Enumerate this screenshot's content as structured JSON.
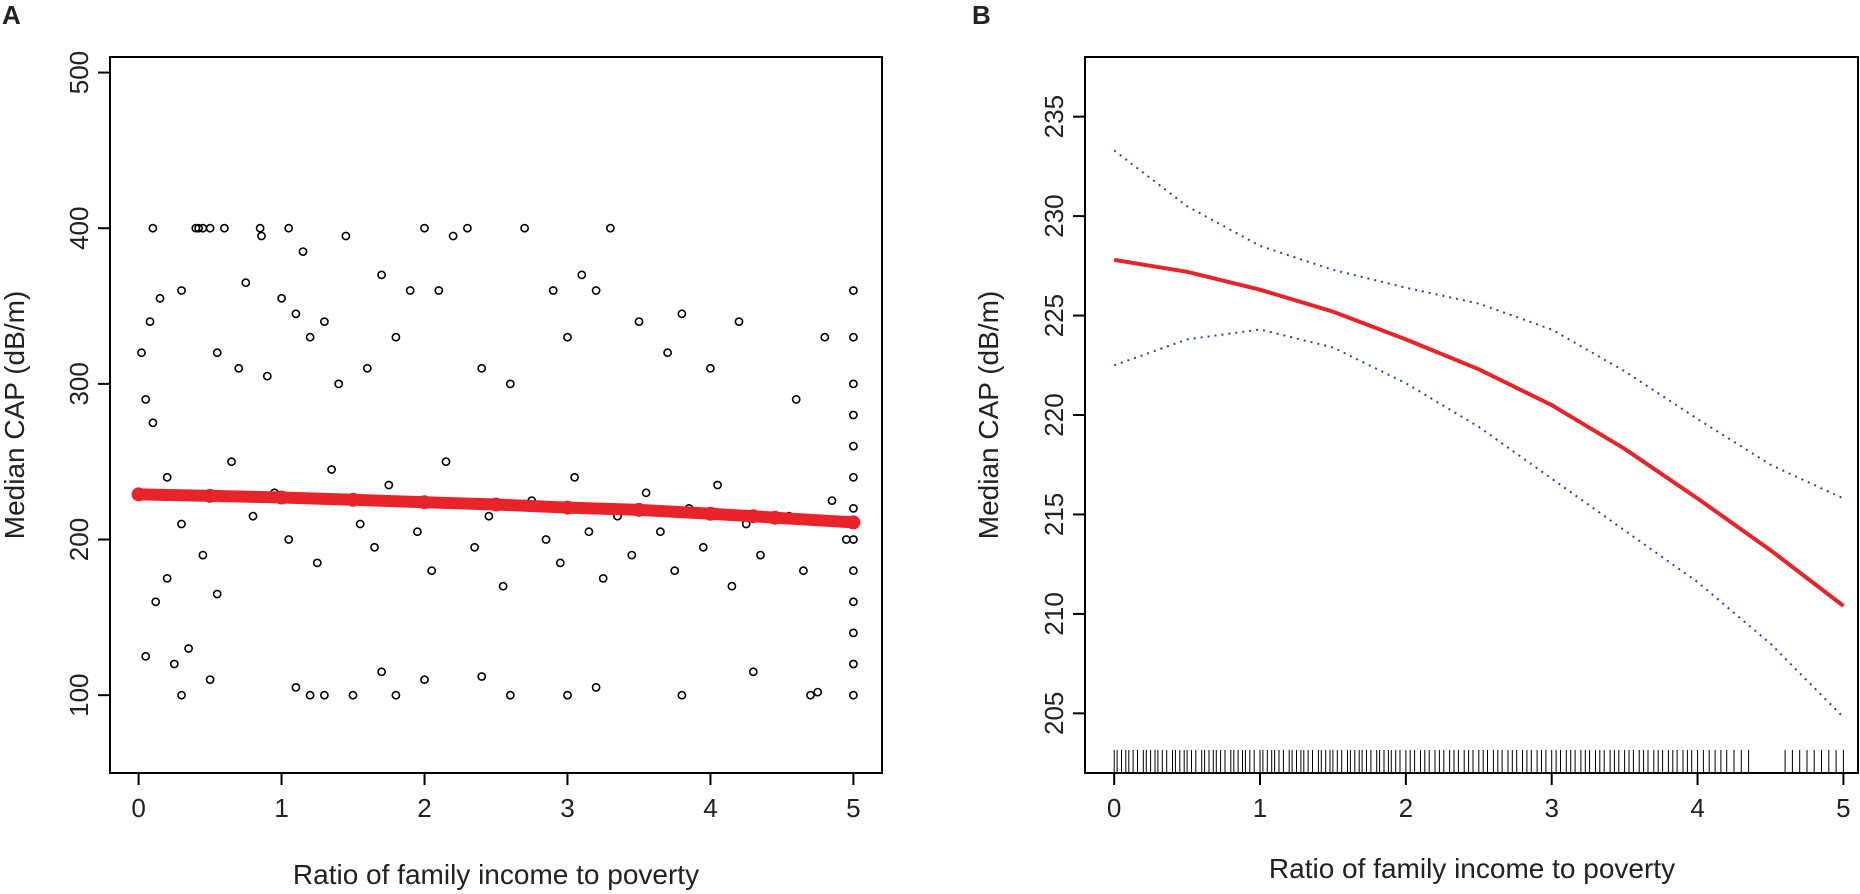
{
  "panels": [
    {
      "letter": "A",
      "chart_data": {
        "type": "scatter",
        "xlabel": "Ratio of family income to poverty",
        "ylabel": "Median CAP (dB/m)",
        "xlim": [
          -0.2,
          5.2
        ],
        "ylim": [
          50,
          510
        ],
        "xticks": [
          0,
          1,
          2,
          3,
          4,
          5
        ],
        "yticks": [
          100,
          200,
          300,
          400,
          500
        ],
        "grid": false,
        "scatter_color": "#000000",
        "fit_color": "#e8242a",
        "fit_line": {
          "x": [
            0,
            0.5,
            1,
            1.5,
            2,
            2.5,
            3,
            3.5,
            4,
            4.3,
            4.45,
            5
          ],
          "y": [
            229,
            228,
            227,
            225.5,
            224,
            222.5,
            220.5,
            219,
            216.5,
            215,
            214,
            211
          ]
        },
        "scatter_note": "approx. 1,200 points; values are estimates read from the figure",
        "points": [
          [
            0.02,
            320
          ],
          [
            0.05,
            290
          ],
          [
            0.08,
            340
          ],
          [
            0.1,
            275
          ],
          [
            0.1,
            400
          ],
          [
            0.15,
            355
          ],
          [
            0.2,
            240
          ],
          [
            0.25,
            120
          ],
          [
            0.3,
            360
          ],
          [
            0.35,
            130
          ],
          [
            0.4,
            400
          ],
          [
            0.42,
            400
          ],
          [
            0.45,
            400
          ],
          [
            0.5,
            400
          ],
          [
            0.55,
            320
          ],
          [
            0.6,
            400
          ],
          [
            0.7,
            310
          ],
          [
            0.75,
            365
          ],
          [
            0.85,
            400
          ],
          [
            0.86,
            395
          ],
          [
            0.9,
            305
          ],
          [
            1.0,
            355
          ],
          [
            1.05,
            400
          ],
          [
            1.1,
            345
          ],
          [
            1.15,
            385
          ],
          [
            1.2,
            330
          ],
          [
            1.3,
            340
          ],
          [
            1.4,
            300
          ],
          [
            1.45,
            395
          ],
          [
            1.6,
            310
          ],
          [
            1.7,
            370
          ],
          [
            1.8,
            330
          ],
          [
            1.9,
            360
          ],
          [
            2.0,
            400
          ],
          [
            2.1,
            360
          ],
          [
            2.2,
            395
          ],
          [
            2.3,
            400
          ],
          [
            2.4,
            310
          ],
          [
            2.6,
            300
          ],
          [
            2.7,
            400
          ],
          [
            2.9,
            360
          ],
          [
            3.0,
            330
          ],
          [
            3.1,
            370
          ],
          [
            3.2,
            360
          ],
          [
            3.3,
            400
          ],
          [
            3.5,
            340
          ],
          [
            3.7,
            320
          ],
          [
            3.8,
            345
          ],
          [
            4.0,
            310
          ],
          [
            4.2,
            340
          ],
          [
            4.6,
            290
          ],
          [
            4.8,
            330
          ],
          [
            5.0,
            360
          ],
          [
            5.0,
            330
          ],
          [
            0.3,
            100
          ],
          [
            0.5,
            110
          ],
          [
            1.1,
            105
          ],
          [
            1.2,
            100
          ],
          [
            1.3,
            100
          ],
          [
            1.5,
            100
          ],
          [
            1.7,
            115
          ],
          [
            1.8,
            100
          ],
          [
            2.0,
            110
          ],
          [
            2.4,
            112
          ],
          [
            2.6,
            100
          ],
          [
            3.0,
            100
          ],
          [
            3.2,
            105
          ],
          [
            3.8,
            100
          ],
          [
            4.3,
            115
          ],
          [
            4.7,
            100
          ],
          [
            4.75,
            102
          ],
          [
            5.0,
            100
          ],
          [
            0.05,
            125
          ],
          [
            0.12,
            160
          ],
          [
            0.2,
            175
          ],
          [
            0.3,
            210
          ],
          [
            0.45,
            190
          ],
          [
            0.55,
            165
          ],
          [
            0.65,
            250
          ],
          [
            0.8,
            215
          ],
          [
            0.95,
            230
          ],
          [
            1.05,
            200
          ],
          [
            1.25,
            185
          ],
          [
            1.35,
            245
          ],
          [
            1.55,
            210
          ],
          [
            1.65,
            195
          ],
          [
            1.75,
            235
          ],
          [
            1.95,
            205
          ],
          [
            2.05,
            180
          ],
          [
            2.15,
            250
          ],
          [
            2.35,
            195
          ],
          [
            2.45,
            215
          ],
          [
            2.55,
            170
          ],
          [
            2.75,
            225
          ],
          [
            2.85,
            200
          ],
          [
            2.95,
            185
          ],
          [
            3.05,
            240
          ],
          [
            3.15,
            205
          ],
          [
            3.25,
            175
          ],
          [
            3.35,
            215
          ],
          [
            3.45,
            190
          ],
          [
            3.55,
            230
          ],
          [
            3.65,
            205
          ],
          [
            3.75,
            180
          ],
          [
            3.85,
            220
          ],
          [
            3.95,
            195
          ],
          [
            4.05,
            235
          ],
          [
            4.15,
            170
          ],
          [
            4.25,
            210
          ],
          [
            4.35,
            190
          ],
          [
            4.55,
            215
          ],
          [
            4.65,
            180
          ],
          [
            4.85,
            225
          ],
          [
            4.95,
            200
          ],
          [
            5.0,
            140
          ],
          [
            5.0,
            160
          ],
          [
            5.0,
            180
          ],
          [
            5.0,
            200
          ],
          [
            5.0,
            220
          ],
          [
            5.0,
            240
          ],
          [
            5.0,
            260
          ],
          [
            5.0,
            280
          ],
          [
            5.0,
            300
          ],
          [
            5.0,
            120
          ]
        ]
      }
    },
    {
      "letter": "B",
      "chart_data": {
        "type": "line",
        "xlabel": "Ratio of family income to poverty",
        "ylabel": "Median CAP (dB/m)",
        "xlim": [
          -0.2,
          5.1
        ],
        "ylim": [
          202,
          238
        ],
        "xticks": [
          0,
          1,
          2,
          3,
          4,
          5
        ],
        "yticks": [
          205,
          210,
          215,
          220,
          225,
          230,
          235
        ],
        "grid": false,
        "series": [
          {
            "role": "fit",
            "style": "solid",
            "color": "#e8242a",
            "x": [
              0,
              0.5,
              1,
              1.5,
              2,
              2.5,
              3,
              3.5,
              4,
              4.5,
              5
            ],
            "y": [
              227.8,
              227.2,
              226.3,
              225.2,
              223.8,
              222.3,
              220.5,
              218.3,
              215.8,
              213.2,
              210.4
            ]
          },
          {
            "role": "upper-ci",
            "style": "dotted",
            "color": "#2a3fb0",
            "x": [
              0,
              0.5,
              1,
              1.5,
              2,
              2.5,
              3,
              3.5,
              4,
              4.5,
              5
            ],
            "y": [
              233.3,
              230.5,
              228.5,
              227.3,
              226.4,
              225.6,
              224.3,
              222.2,
              219.8,
              217.5,
              215.8
            ]
          },
          {
            "role": "lower-ci",
            "style": "dotted",
            "color": "#2a3fb0",
            "x": [
              0,
              0.5,
              1,
              1.5,
              2,
              2.5,
              3,
              3.5,
              4,
              4.5,
              5
            ],
            "y": [
              222.5,
              223.8,
              224.3,
              223.4,
              221.6,
              219.4,
              216.8,
              214.2,
              211.6,
              208.5,
              204.8
            ]
          }
        ],
        "rug": [
          0.0,
          0.02,
          0.05,
          0.08,
          0.1,
          0.13,
          0.16,
          0.2,
          0.22,
          0.25,
          0.28,
          0.3,
          0.33,
          0.36,
          0.4,
          0.42,
          0.45,
          0.48,
          0.5,
          0.53,
          0.56,
          0.6,
          0.62,
          0.65,
          0.68,
          0.7,
          0.73,
          0.76,
          0.8,
          0.82,
          0.85,
          0.88,
          0.9,
          0.93,
          0.96,
          1.0,
          1.02,
          1.05,
          1.08,
          1.1,
          1.13,
          1.16,
          1.2,
          1.22,
          1.25,
          1.28,
          1.3,
          1.33,
          1.36,
          1.4,
          1.42,
          1.45,
          1.48,
          1.5,
          1.53,
          1.56,
          1.6,
          1.62,
          1.65,
          1.68,
          1.7,
          1.73,
          1.76,
          1.8,
          1.82,
          1.85,
          1.88,
          1.9,
          1.93,
          1.96,
          2.0,
          2.03,
          2.06,
          2.1,
          2.13,
          2.16,
          2.2,
          2.23,
          2.26,
          2.3,
          2.33,
          2.36,
          2.4,
          2.43,
          2.46,
          2.5,
          2.53,
          2.56,
          2.6,
          2.63,
          2.66,
          2.7,
          2.73,
          2.76,
          2.8,
          2.83,
          2.86,
          2.9,
          2.93,
          2.96,
          3.0,
          3.03,
          3.06,
          3.1,
          3.13,
          3.16,
          3.2,
          3.23,
          3.26,
          3.3,
          3.33,
          3.36,
          3.4,
          3.43,
          3.46,
          3.5,
          3.53,
          3.56,
          3.6,
          3.63,
          3.66,
          3.7,
          3.73,
          3.76,
          3.8,
          3.83,
          3.86,
          3.9,
          3.93,
          3.96,
          4.0,
          4.04,
          4.08,
          4.12,
          4.16,
          4.2,
          4.25,
          4.3,
          4.35,
          4.6,
          4.65,
          4.7,
          4.75,
          4.8,
          4.85,
          4.9,
          4.95,
          5.0
        ]
      }
    }
  ]
}
